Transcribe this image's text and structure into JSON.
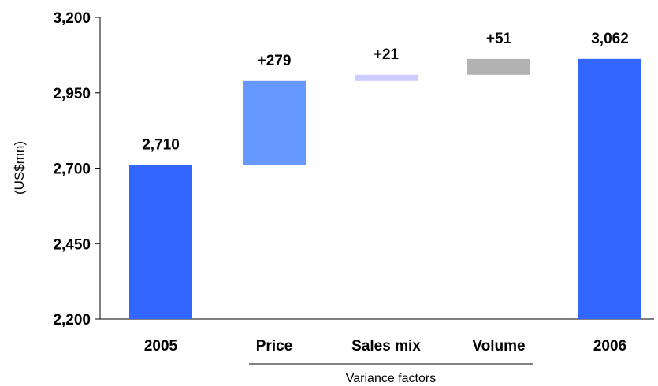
{
  "chart_data": {
    "type": "bar",
    "subtype": "waterfall",
    "title": "",
    "xlabel": "",
    "ylabel": "(US$mn)",
    "ylim": [
      2200,
      3200
    ],
    "yticks": [
      2200,
      2450,
      2700,
      2950,
      3200
    ],
    "ytick_labels": [
      "2,200",
      "2,450",
      "2,700",
      "2,950",
      "3,200"
    ],
    "grid": false,
    "legend": "none",
    "categories": [
      "2005",
      "Price",
      "Sales mix",
      "Volume",
      "2006"
    ],
    "bars": [
      {
        "category": "2005",
        "kind": "total",
        "start": 2200,
        "end": 2710,
        "label": "2,710",
        "color": "#3366FF"
      },
      {
        "category": "Price",
        "kind": "delta",
        "start": 2710,
        "end": 2989,
        "label": "+279",
        "color": "#6699FF"
      },
      {
        "category": "Sales mix",
        "kind": "delta",
        "start": 2989,
        "end": 3010,
        "label": "+21",
        "color": "#CCCCFF"
      },
      {
        "category": "Volume",
        "kind": "delta",
        "start": 3010,
        "end": 3062,
        "label": "+51",
        "color": "#B2B2B2"
      },
      {
        "category": "2006",
        "kind": "total",
        "start": 2200,
        "end": 3062,
        "label": "3,062",
        "color": "#3366FF"
      }
    ],
    "group_annotation": {
      "label": "Variance factors",
      "categories": [
        "Price",
        "Sales mix",
        "Volume"
      ]
    }
  }
}
